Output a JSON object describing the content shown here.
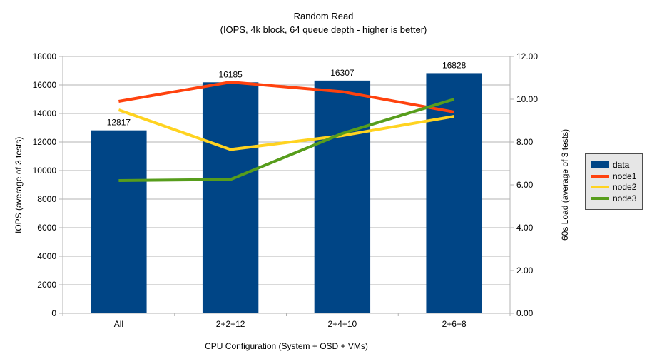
{
  "title": {
    "line1": "Random Read",
    "line2": "(IOPS, 4k block, 64 queue depth - higher is better)"
  },
  "colors": {
    "background": "#ffffff",
    "text": "#000000",
    "grid": "#b3b3b3",
    "axis": "#b3b3b3",
    "legend_bg": "#e6e6e6",
    "legend_border": "#4d4d4d",
    "bar": "#004586",
    "node1": "#ff420e",
    "node2": "#ffd320",
    "node3": "#579d1c"
  },
  "chart_data": {
    "type": "bar+line",
    "title": "Random Read",
    "subtitle": "(IOPS, 4k block, 64 queue depth - higher is better)",
    "categories": [
      "All",
      "2+2+12",
      "2+4+10",
      "2+6+8"
    ],
    "series": [
      {
        "name": "data",
        "type": "bar",
        "axis": "left",
        "color": "#004586",
        "values": [
          12817,
          16185,
          16307,
          16828
        ],
        "data_labels": [
          "12817",
          "16185",
          "16307",
          "16828"
        ]
      },
      {
        "name": "node1",
        "type": "line",
        "axis": "right",
        "color": "#ff420e",
        "values": [
          9.9,
          10.8,
          10.35,
          9.4
        ]
      },
      {
        "name": "node2",
        "type": "line",
        "axis": "right",
        "color": "#ffd320",
        "values": [
          9.5,
          7.65,
          8.3,
          9.2
        ]
      },
      {
        "name": "node3",
        "type": "line",
        "axis": "right",
        "color": "#579d1c",
        "values": [
          6.2,
          6.25,
          8.4,
          10.0
        ]
      }
    ],
    "left_axis": {
      "title": "IOPS (average of 3 tests)",
      "min": 0,
      "max": 18000,
      "step": 2000
    },
    "right_axis": {
      "title": "60s Load (average of 3 tests)",
      "min": 0,
      "max": 12,
      "step": 2,
      "decimals": 2
    },
    "x_axis": {
      "title": "CPU Configuration (System + OSD + VMs)"
    },
    "grid": "horizontal",
    "legend_position": "right",
    "legend_items": [
      "data",
      "node1",
      "node2",
      "node3"
    ]
  }
}
